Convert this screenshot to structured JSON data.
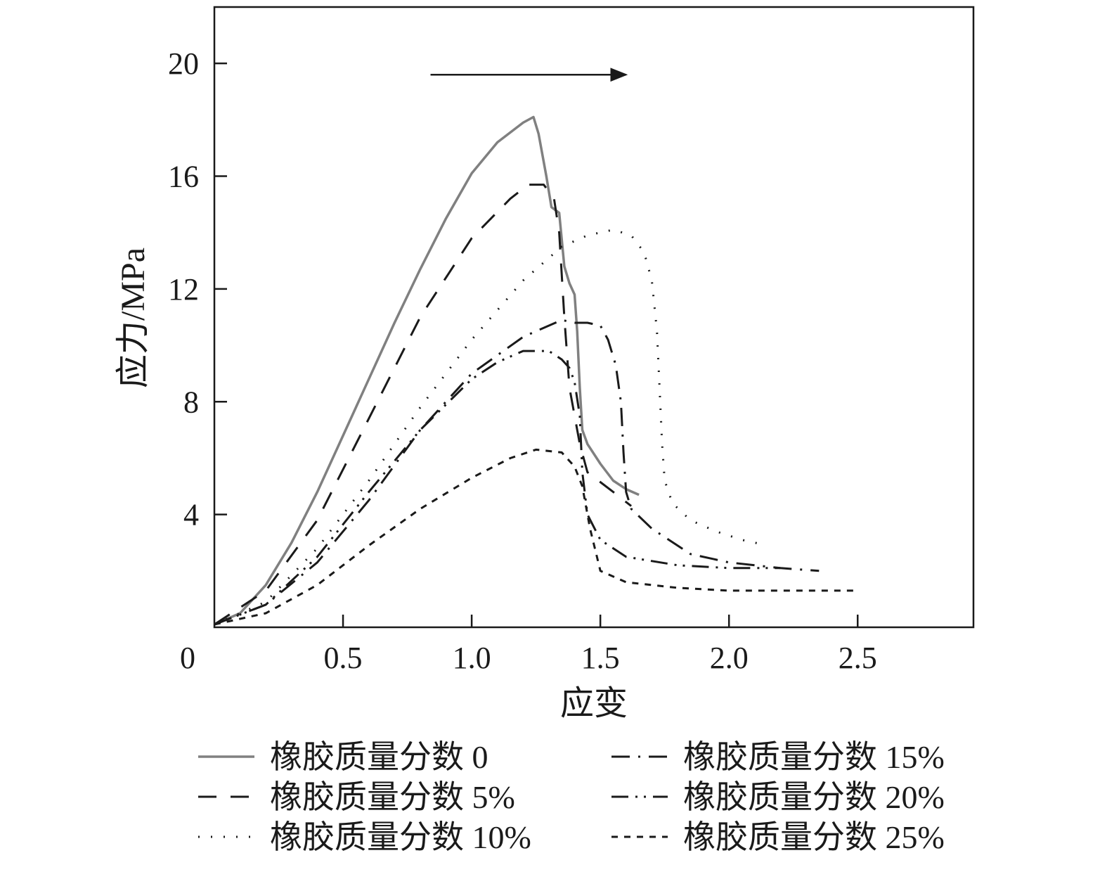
{
  "chart_data": {
    "type": "line",
    "title": "",
    "xlabel": "应变",
    "ylabel": "应力/MPa",
    "xlim": [
      0,
      2.95
    ],
    "ylim": [
      0,
      22
    ],
    "x_ticks": [
      {
        "value": 0,
        "label": "0"
      },
      {
        "value": 0.5,
        "label": "0.5"
      },
      {
        "value": 1.0,
        "label": "1.0"
      },
      {
        "value": 1.5,
        "label": "1.5"
      },
      {
        "value": 2.0,
        "label": "2.0"
      },
      {
        "value": 2.5,
        "label": "2.5"
      }
    ],
    "y_ticks": [
      {
        "value": 4,
        "label": "4"
      },
      {
        "value": 8,
        "label": "8"
      },
      {
        "value": 12,
        "label": "12"
      },
      {
        "value": 16,
        "label": "16"
      },
      {
        "value": 20,
        "label": "20"
      }
    ],
    "grid": false,
    "legend_position": "bottom",
    "annotations": [
      {
        "type": "arrow",
        "x_start": 0.84,
        "x_end": 1.6,
        "y": 19.6
      }
    ],
    "series": [
      {
        "name": "橡胶质量分数 0",
        "color": "#808080",
        "style": "solid",
        "x": [
          0,
          0.1,
          0.2,
          0.3,
          0.4,
          0.5,
          0.6,
          0.7,
          0.8,
          0.9,
          1.0,
          1.1,
          1.2,
          1.24,
          1.26,
          1.29,
          1.31,
          1.34,
          1.36,
          1.38,
          1.4,
          1.41,
          1.42,
          1.43,
          1.45,
          1.5,
          1.55,
          1.6,
          1.65
        ],
        "y": [
          0.1,
          0.5,
          1.5,
          3.0,
          4.8,
          6.8,
          8.8,
          10.8,
          12.7,
          14.5,
          16.1,
          17.2,
          17.9,
          18.1,
          17.5,
          16.0,
          14.9,
          14.7,
          12.8,
          12.2,
          11.8,
          10.5,
          8.5,
          7.0,
          6.5,
          5.8,
          5.2,
          4.9,
          4.7
        ]
      },
      {
        "name": "橡胶质量分数 5%",
        "color": "#1a1a1a",
        "style": "dash",
        "x": [
          0,
          0.2,
          0.4,
          0.6,
          0.8,
          1.0,
          1.15,
          1.22,
          1.28,
          1.32,
          1.34,
          1.36,
          1.38,
          1.42,
          1.45,
          1.55,
          1.62
        ],
        "y": [
          0.1,
          1.3,
          3.8,
          7.4,
          11.0,
          13.8,
          15.2,
          15.7,
          15.7,
          15.2,
          14.0,
          11.0,
          8.5,
          6.5,
          5.5,
          4.8,
          4.3
        ]
      },
      {
        "name": "橡胶质量分数 10%",
        "color": "#1a1a1a",
        "style": "dot",
        "x": [
          0,
          0.2,
          0.4,
          0.6,
          0.8,
          1.0,
          1.2,
          1.35,
          1.45,
          1.55,
          1.62,
          1.67,
          1.7,
          1.72,
          1.73,
          1.74,
          1.75,
          1.78,
          1.85,
          1.95,
          2.05,
          2.15
        ],
        "y": [
          0.1,
          0.9,
          2.8,
          5.2,
          7.8,
          10.2,
          12.3,
          13.5,
          13.9,
          14.1,
          13.9,
          13.3,
          12.3,
          10.5,
          8.5,
          6.5,
          5.2,
          4.4,
          3.8,
          3.4,
          3.1,
          2.9
        ]
      },
      {
        "name": "橡胶质量分数 15%",
        "color": "#1a1a1a",
        "style": "dashdot",
        "x": [
          0,
          0.2,
          0.4,
          0.6,
          0.8,
          1.0,
          1.2,
          1.35,
          1.4,
          1.45,
          1.5,
          1.53,
          1.56,
          1.58,
          1.59,
          1.6,
          1.62,
          1.7,
          1.85,
          2.0,
          2.2,
          2.35
        ],
        "y": [
          0.1,
          0.8,
          2.3,
          4.5,
          7.0,
          9.0,
          10.3,
          10.9,
          10.8,
          10.8,
          10.7,
          10.2,
          9.3,
          8.0,
          6.2,
          4.8,
          4.2,
          3.5,
          2.6,
          2.3,
          2.1,
          2.0
        ]
      },
      {
        "name": "橡胶质量分数 20%",
        "color": "#1a1a1a",
        "style": "dashdotdot",
        "x": [
          0,
          0.2,
          0.4,
          0.6,
          0.8,
          1.0,
          1.1,
          1.2,
          1.3,
          1.35,
          1.38,
          1.4,
          1.42,
          1.43,
          1.45,
          1.5,
          1.6,
          1.8,
          2.0,
          2.2
        ],
        "y": [
          0.1,
          0.8,
          2.5,
          4.8,
          7.0,
          8.8,
          9.4,
          9.8,
          9.8,
          9.5,
          9.2,
          8.7,
          7.5,
          5.5,
          4.0,
          3.1,
          2.5,
          2.2,
          2.1,
          2.1
        ]
      },
      {
        "name": "橡胶质量分数 25%",
        "color": "#1a1a1a",
        "style": "shortdash",
        "x": [
          0,
          0.2,
          0.4,
          0.6,
          0.8,
          1.0,
          1.15,
          1.25,
          1.35,
          1.4,
          1.43,
          1.46,
          1.5,
          1.6,
          1.8,
          2.0,
          2.5
        ],
        "y": [
          0.1,
          0.5,
          1.5,
          2.9,
          4.2,
          5.3,
          6.0,
          6.3,
          6.2,
          5.7,
          5.0,
          3.5,
          2.0,
          1.6,
          1.4,
          1.3,
          1.3
        ]
      }
    ]
  }
}
